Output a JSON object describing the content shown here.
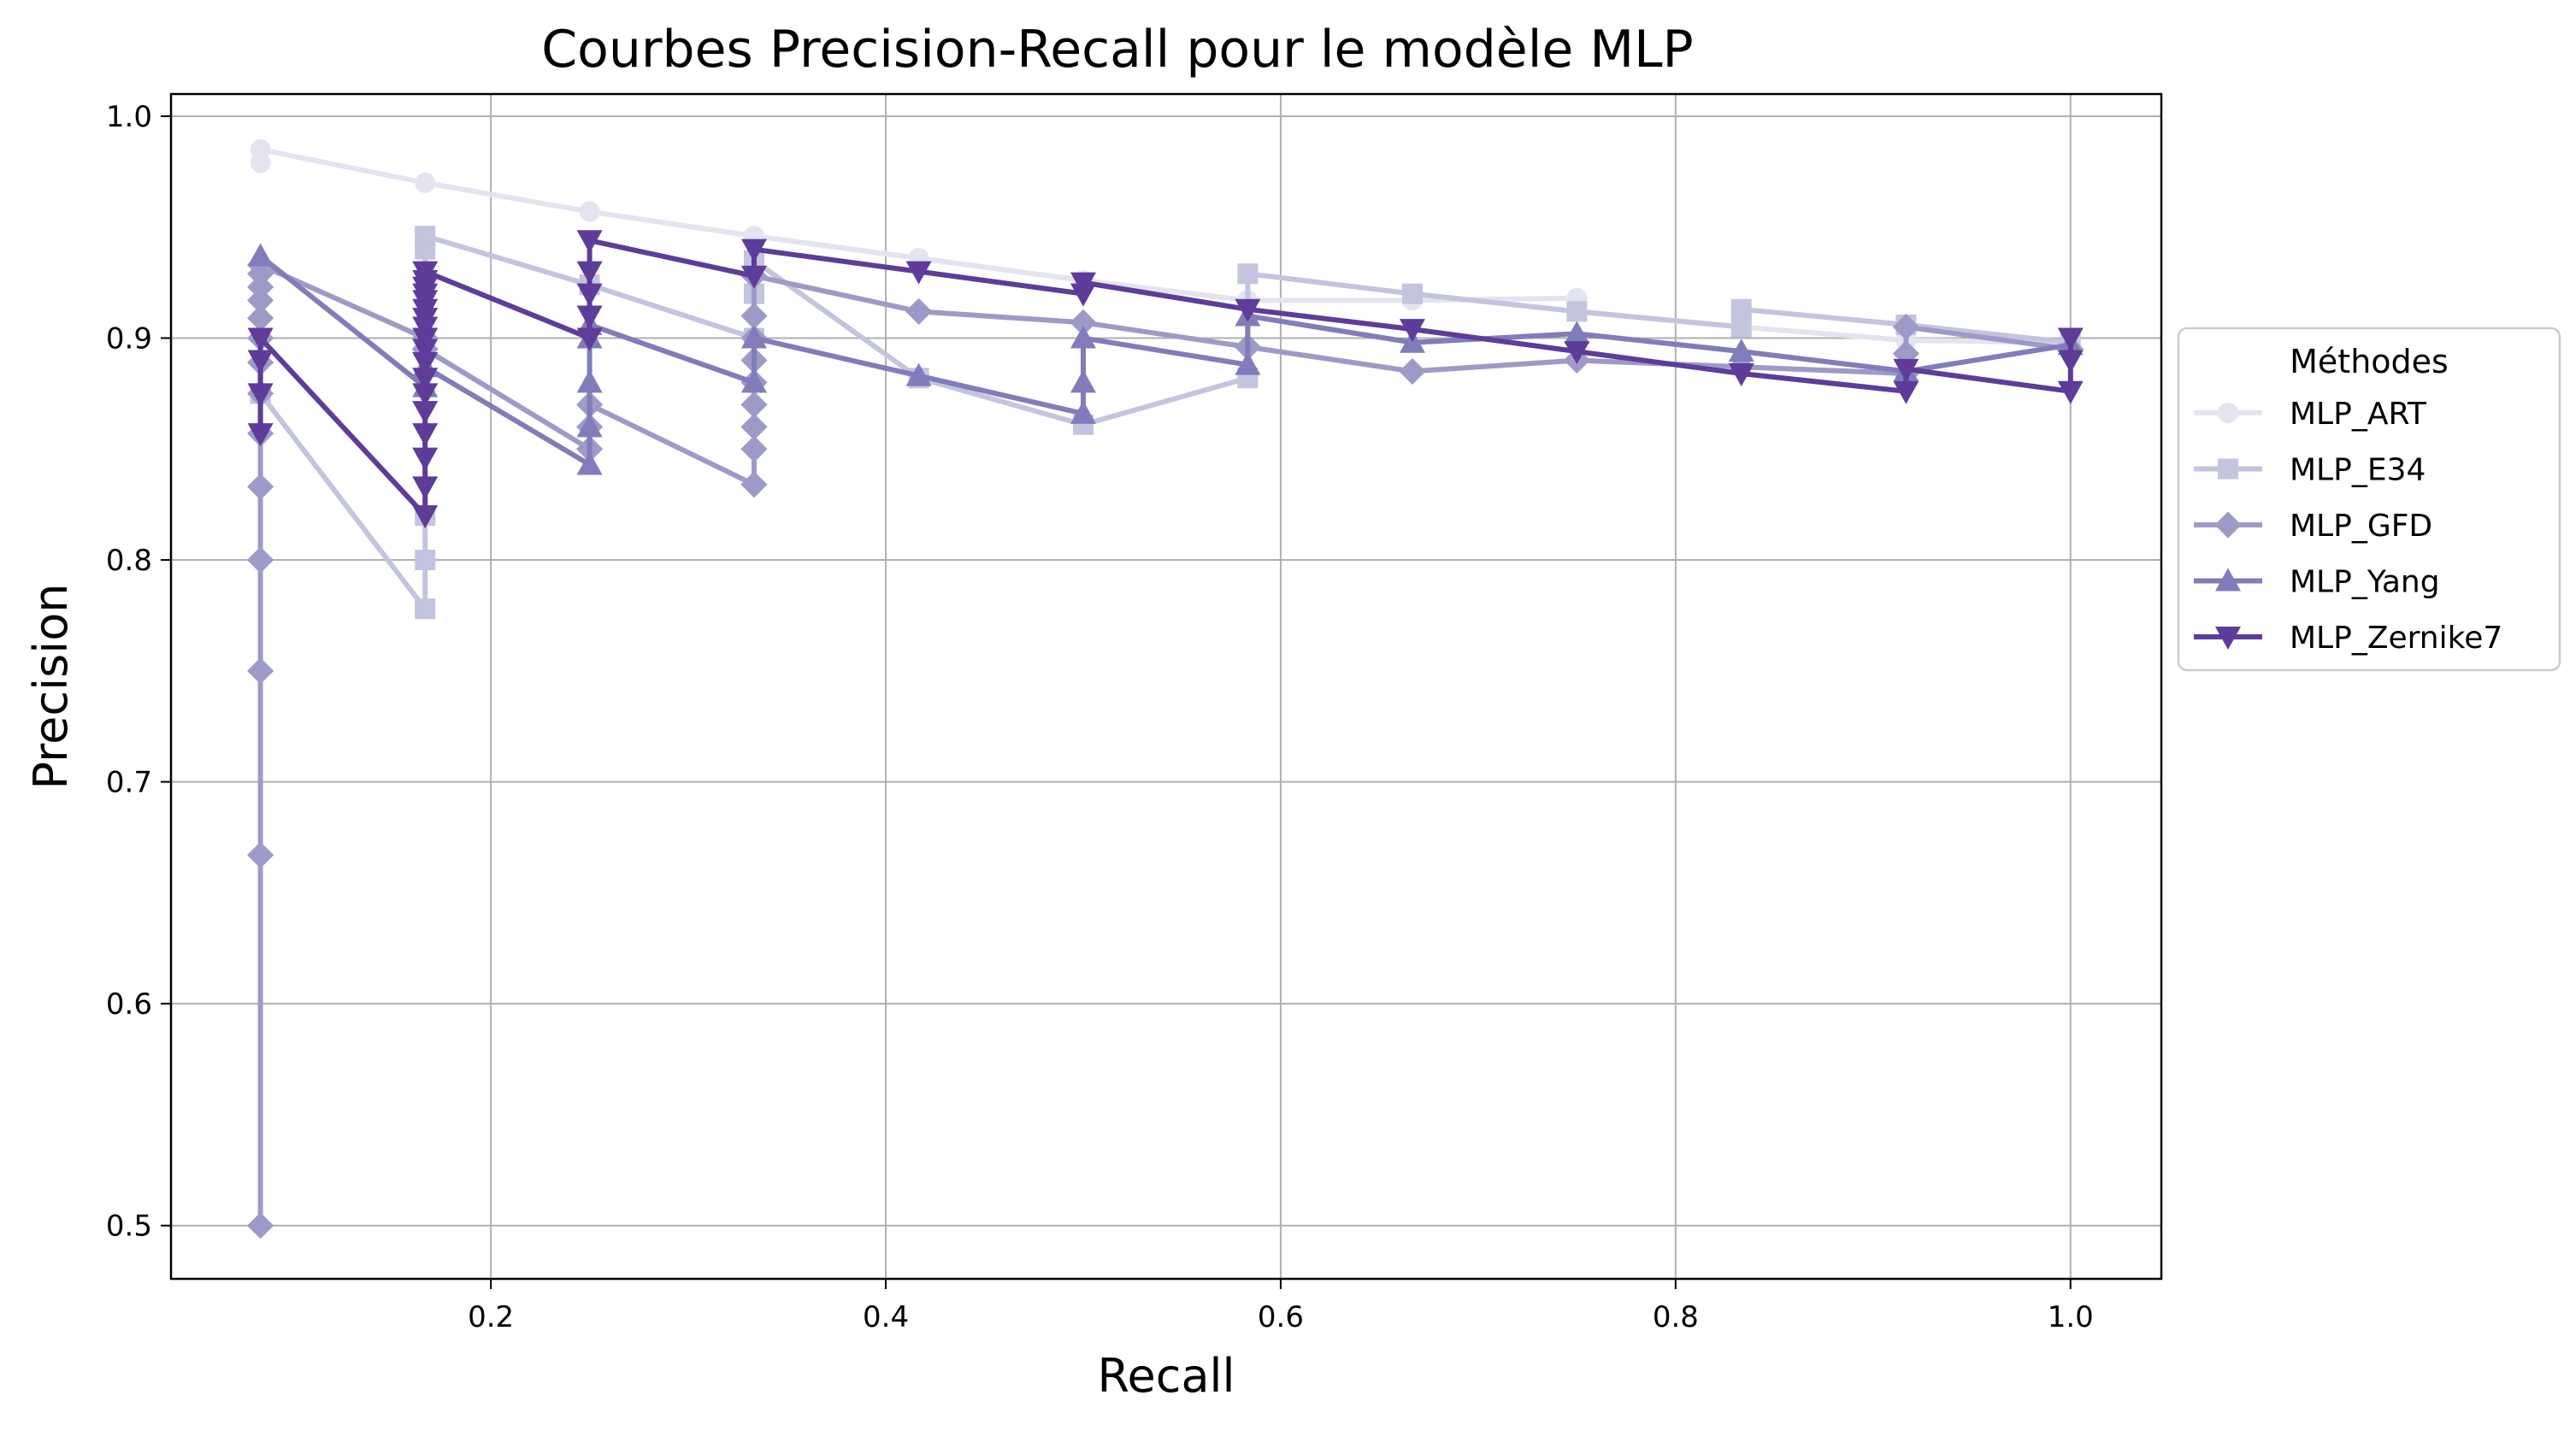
{
  "chart_data": {
    "type": "line",
    "title": "Courbes Precision-Recall pour le modèle MLP",
    "xlabel": "Recall",
    "ylabel": "Precision",
    "xlim": [
      0.038,
      1.046
    ],
    "ylim": [
      0.476,
      1.01
    ],
    "xticks": [
      0.2,
      0.4,
      0.6,
      0.8,
      1.0
    ],
    "xtick_labels": [
      "0.2",
      "0.4",
      "0.6",
      "0.8",
      "1.0"
    ],
    "yticks": [
      0.5,
      0.6,
      0.7,
      0.8,
      0.9,
      1.0
    ],
    "ytick_labels": [
      "0.5",
      "0.6",
      "0.7",
      "0.8",
      "0.9",
      "1.0"
    ],
    "grid": true,
    "legend": {
      "title": "Méthodes",
      "placement": "outside right"
    },
    "series": [
      {
        "name": "MLP_ART",
        "color": "#e4e3f0",
        "marker": "circle",
        "points": [
          [
            0.0833,
            0.979
          ],
          [
            0.0833,
            0.985
          ],
          [
            0.1667,
            0.97
          ],
          [
            0.25,
            0.957
          ],
          [
            0.3333,
            0.946
          ],
          [
            0.4167,
            0.936
          ],
          [
            0.5,
            0.926
          ],
          [
            0.5833,
            0.917
          ],
          [
            0.6667,
            0.917
          ],
          [
            0.75,
            0.918
          ],
          [
            0.75,
            0.912
          ],
          [
            0.8333,
            0.905
          ],
          [
            0.9167,
            0.899
          ],
          [
            1.0,
            0.898
          ]
        ]
      },
      {
        "name": "MLP_E34",
        "color": "#c3c4de",
        "marker": "square",
        "points": [
          [
            0.0833,
            0.875
          ],
          [
            0.1667,
            0.778
          ],
          [
            0.1667,
            0.8
          ],
          [
            0.1667,
            0.82
          ],
          [
            0.1667,
            0.94
          ],
          [
            0.1667,
            0.946
          ],
          [
            0.25,
            0.924
          ],
          [
            0.3333,
            0.9
          ],
          [
            0.3333,
            0.92
          ],
          [
            0.3333,
            0.935
          ],
          [
            0.4167,
            0.882
          ],
          [
            0.5,
            0.861
          ],
          [
            0.5833,
            0.882
          ],
          [
            0.5833,
            0.929
          ],
          [
            0.6667,
            0.92
          ],
          [
            0.75,
            0.912
          ],
          [
            0.8333,
            0.905
          ],
          [
            0.8333,
            0.913
          ],
          [
            0.9167,
            0.906
          ],
          [
            1.0,
            0.898
          ]
        ]
      },
      {
        "name": "MLP_GFD",
        "color": "#9e9ac8",
        "marker": "diamond",
        "points": [
          [
            0.0833,
            0.5
          ],
          [
            0.0833,
            0.667
          ],
          [
            0.0833,
            0.75
          ],
          [
            0.0833,
            0.8
          ],
          [
            0.0833,
            0.833
          ],
          [
            0.0833,
            0.857
          ],
          [
            0.0833,
            0.875
          ],
          [
            0.0833,
            0.889
          ],
          [
            0.0833,
            0.9
          ],
          [
            0.0833,
            0.909
          ],
          [
            0.0833,
            0.917
          ],
          [
            0.0833,
            0.923
          ],
          [
            0.0833,
            0.929
          ],
          [
            0.0833,
            0.933
          ],
          [
            0.1667,
            0.9
          ],
          [
            0.1667,
            0.895
          ],
          [
            0.25,
            0.85
          ],
          [
            0.25,
            0.86
          ],
          [
            0.25,
            0.87
          ],
          [
            0.3333,
            0.834
          ],
          [
            0.3333,
            0.85
          ],
          [
            0.3333,
            0.86
          ],
          [
            0.3333,
            0.87
          ],
          [
            0.3333,
            0.88
          ],
          [
            0.3333,
            0.89
          ],
          [
            0.3333,
            0.9
          ],
          [
            0.3333,
            0.91
          ],
          [
            0.3333,
            0.928
          ],
          [
            0.4167,
            0.912
          ],
          [
            0.5,
            0.907
          ],
          [
            0.5833,
            0.896
          ],
          [
            0.6667,
            0.885
          ],
          [
            0.75,
            0.89
          ],
          [
            0.8333,
            0.887
          ],
          [
            0.9167,
            0.884
          ],
          [
            0.9167,
            0.893
          ],
          [
            0.9167,
            0.905
          ],
          [
            1.0,
            0.895
          ]
        ]
      },
      {
        "name": "MLP_Yang",
        "color": "#807dba",
        "marker": "triangle-up",
        "points": [
          [
            0.0833,
            0.937
          ],
          [
            0.1667,
            0.878
          ],
          [
            0.1667,
            0.887
          ],
          [
            0.25,
            0.843
          ],
          [
            0.25,
            0.86
          ],
          [
            0.25,
            0.88
          ],
          [
            0.25,
            0.9
          ],
          [
            0.25,
            0.906
          ],
          [
            0.3333,
            0.88
          ],
          [
            0.3333,
            0.9
          ],
          [
            0.4167,
            0.883
          ],
          [
            0.5,
            0.866
          ],
          [
            0.5,
            0.88
          ],
          [
            0.5,
            0.9
          ],
          [
            0.5833,
            0.888
          ],
          [
            0.5833,
            0.91
          ],
          [
            0.6667,
            0.898
          ],
          [
            0.75,
            0.902
          ],
          [
            0.8333,
            0.894
          ],
          [
            0.9167,
            0.885
          ],
          [
            1.0,
            0.897
          ]
        ]
      },
      {
        "name": "MLP_Zernike7",
        "color": "#5e3c99",
        "marker": "triangle-down",
        "points": [
          [
            0.0833,
            0.857
          ],
          [
            0.0833,
            0.875
          ],
          [
            0.0833,
            0.89
          ],
          [
            0.0833,
            0.9
          ],
          [
            0.1667,
            0.82
          ],
          [
            0.1667,
            0.833
          ],
          [
            0.1667,
            0.846
          ],
          [
            0.1667,
            0.857
          ],
          [
            0.1667,
            0.867
          ],
          [
            0.1667,
            0.875
          ],
          [
            0.1667,
            0.882
          ],
          [
            0.1667,
            0.889
          ],
          [
            0.1667,
            0.895
          ],
          [
            0.1667,
            0.9
          ],
          [
            0.1667,
            0.905
          ],
          [
            0.1667,
            0.909
          ],
          [
            0.1667,
            0.913
          ],
          [
            0.1667,
            0.917
          ],
          [
            0.1667,
            0.92
          ],
          [
            0.1667,
            0.923
          ],
          [
            0.1667,
            0.926
          ],
          [
            0.1667,
            0.93
          ],
          [
            0.25,
            0.9
          ],
          [
            0.25,
            0.91
          ],
          [
            0.25,
            0.92
          ],
          [
            0.25,
            0.93
          ],
          [
            0.25,
            0.944
          ],
          [
            0.3333,
            0.928
          ],
          [
            0.3333,
            0.94
          ],
          [
            0.4167,
            0.93
          ],
          [
            0.5,
            0.92
          ],
          [
            0.5,
            0.925
          ],
          [
            0.5833,
            0.913
          ],
          [
            0.6667,
            0.904
          ],
          [
            0.75,
            0.894
          ],
          [
            0.8333,
            0.884
          ],
          [
            0.9167,
            0.876
          ],
          [
            0.9167,
            0.886
          ],
          [
            1.0,
            0.876
          ],
          [
            1.0,
            0.89
          ],
          [
            1.0,
            0.9
          ]
        ]
      }
    ]
  }
}
